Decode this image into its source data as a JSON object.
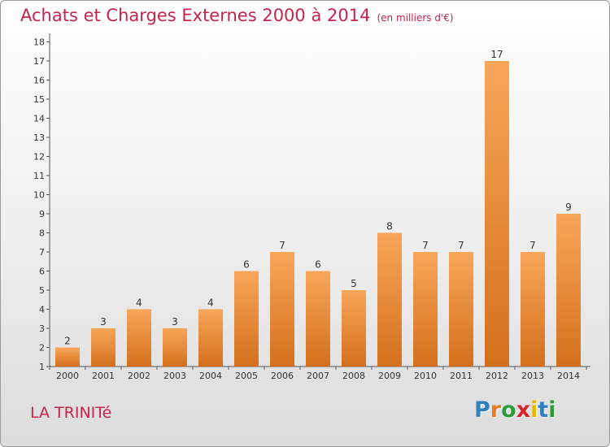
{
  "title": "Achats et Charges Externes 2000 à 2014",
  "unit_note": "(en milliers d'€)",
  "place_name": "LA TRINITé",
  "logo": {
    "text": "Proxiti",
    "letter_colors": [
      "#2f7fc1",
      "#e87a1f",
      "#2f9a3a",
      "#d8232a",
      "#e6b800",
      "#2f7fc1",
      "#2f9a3a"
    ]
  },
  "colors": {
    "title": "#c4254c",
    "bar_top": "#f8a65a",
    "bar_bottom": "#d4701c",
    "axis": "#555555"
  },
  "chart_data": {
    "type": "bar",
    "title": "Achats et Charges Externes 2000 à 2014",
    "subtitle": "(en milliers d'€)",
    "xlabel": "",
    "ylabel": "",
    "categories": [
      "2000",
      "2001",
      "2002",
      "2003",
      "2004",
      "2005",
      "2006",
      "2007",
      "2008",
      "2009",
      "2010",
      "2011",
      "2012",
      "2013",
      "2014"
    ],
    "values": [
      2,
      3,
      4,
      3,
      4,
      6,
      7,
      6,
      5,
      8,
      7,
      7,
      17,
      7,
      9
    ],
    "y_ticks": [
      "1",
      "2",
      "3",
      "4",
      "5",
      "6",
      "7",
      "8",
      "9",
      "10",
      "11",
      "12",
      "13",
      "14",
      "15",
      "16",
      "17",
      "18"
    ],
    "ylim": [
      1,
      18
    ],
    "grid": false,
    "data_labels": true
  }
}
